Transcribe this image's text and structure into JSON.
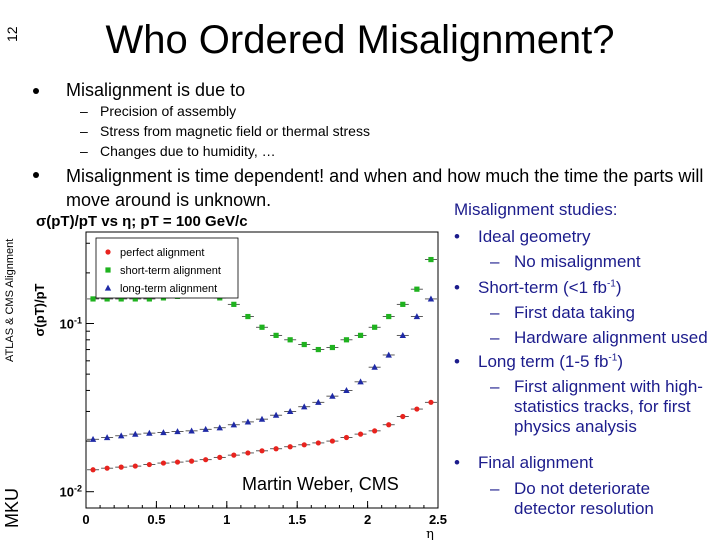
{
  "slide": {
    "number": "12",
    "title": "Who Ordered Misalignment?",
    "side_label": "ATLAS & CMS Alignment",
    "side_logo": "MKU",
    "credit": "Martin Weber, CMS"
  },
  "bullets": [
    {
      "text": "Misalignment is due to",
      "subitems": [
        "Precision of assembly",
        "Stress from magnetic field or thermal stress",
        "Changes due to humidity, …"
      ]
    },
    {
      "text": "Misalignment is time dependent! and when and how much the time the parts will move around is unknown."
    }
  ],
  "studies": {
    "heading": "Misalignment studies:",
    "bullet_symbol": "•",
    "dash_symbol": "–",
    "items": [
      {
        "label": "Ideal geometry",
        "sub": [
          "No misalignment"
        ]
      },
      {
        "label": "Short-term (<1 fb",
        "sup": "-1",
        "suffix": ")",
        "sub": [
          "First data taking",
          "Hardware alignment used"
        ]
      },
      {
        "label": "Long term (1-5 fb",
        "sup": "-1",
        "suffix": ")",
        "sub": [
          "First alignment with high-statistics tracks, for first physics analysis"
        ]
      },
      {
        "label": "Final alignment",
        "sub": [
          "Do not deteriorate detector resolution"
        ]
      }
    ]
  },
  "colors": {
    "studies_text": "#1c1c8c",
    "perfect": "#e8231e",
    "short_term": "#1fb21f",
    "long_term": "#1f2aa6"
  },
  "chart_data": {
    "type": "scatter",
    "title": "σ(pT)/pT vs η; pT = 100 GeV/c",
    "ylabel": "σ(pT)/pT",
    "xlabel": "η",
    "log_y": true,
    "xlim": [
      0,
      2.5
    ],
    "ylim": [
      0.008,
      0.35
    ],
    "x_ticks": [
      "0",
      "0.5",
      "1",
      "1.5",
      "2",
      "2.5"
    ],
    "y_ticks": [
      {
        "label": "10",
        "sup": "-1",
        "value": 0.1
      },
      {
        "label": "10",
        "sup": "-2",
        "value": 0.01
      }
    ],
    "legend_position": "top-left",
    "x": [
      0.05,
      0.15,
      0.25,
      0.35,
      0.45,
      0.55,
      0.65,
      0.75,
      0.85,
      0.95,
      1.05,
      1.15,
      1.25,
      1.35,
      1.45,
      1.55,
      1.65,
      1.75,
      1.85,
      1.95,
      2.05,
      2.15,
      2.25,
      2.35,
      2.45
    ],
    "series": [
      {
        "name": "perfect alignment",
        "marker": "circle",
        "values": [
          0.0135,
          0.0138,
          0.014,
          0.0142,
          0.0145,
          0.0148,
          0.015,
          0.0152,
          0.0155,
          0.016,
          0.0165,
          0.017,
          0.0175,
          0.018,
          0.0185,
          0.019,
          0.0195,
          0.02,
          0.021,
          0.022,
          0.023,
          0.025,
          0.028,
          0.031,
          0.034
        ]
      },
      {
        "name": "short-term alignment",
        "marker": "square",
        "values": [
          0.14,
          0.14,
          0.14,
          0.14,
          0.14,
          0.142,
          0.145,
          0.15,
          0.148,
          0.142,
          0.13,
          0.11,
          0.095,
          0.085,
          0.08,
          0.075,
          0.07,
          0.072,
          0.08,
          0.085,
          0.095,
          0.11,
          0.13,
          0.16,
          0.24
        ]
      },
      {
        "name": "long-term alignment",
        "marker": "triangle",
        "values": [
          0.0205,
          0.021,
          0.0215,
          0.022,
          0.0223,
          0.0225,
          0.0228,
          0.023,
          0.0235,
          0.024,
          0.025,
          0.026,
          0.027,
          0.0285,
          0.03,
          0.032,
          0.034,
          0.037,
          0.04,
          0.045,
          0.055,
          0.065,
          0.085,
          0.11,
          0.14
        ]
      }
    ]
  }
}
